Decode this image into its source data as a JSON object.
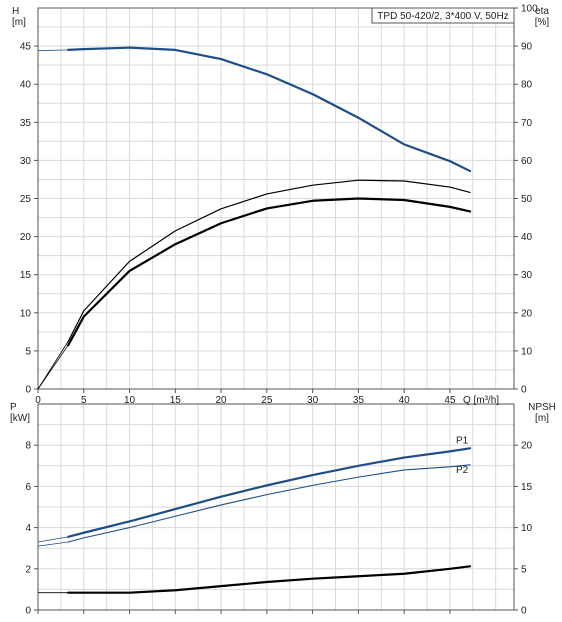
{
  "chart_data": [
    {
      "type": "line",
      "title": "TPD 50-420/2, 3*400 V, 50Hz",
      "xlabel": "Q [m³/h]",
      "ylabel_left": [
        "H",
        "[m]"
      ],
      "ylabel_right": [
        "eta",
        "[%]"
      ],
      "xlim": [
        0,
        52
      ],
      "ylim_left": [
        0,
        50
      ],
      "ylim_right": [
        0,
        100
      ],
      "xticks": [
        0,
        5,
        10,
        15,
        20,
        25,
        30,
        35,
        40,
        45
      ],
      "yticks_left": [
        0,
        5,
        10,
        15,
        20,
        25,
        30,
        35,
        40,
        45
      ],
      "yticks_right": [
        0,
        10,
        20,
        30,
        40,
        50,
        60,
        70,
        80,
        90,
        100
      ],
      "grid": true,
      "series": [
        {
          "axis": "left",
          "color": "#1f4e87",
          "x": [
            0,
            3.3,
            5,
            10,
            15,
            20,
            25,
            30,
            35,
            40,
            45,
            47.2
          ],
          "y": [
            44.4,
            44.5,
            44.6,
            44.8,
            44.5,
            43.3,
            41.3,
            38.7,
            35.6,
            32.1,
            29.9,
            28.6
          ]
        },
        {
          "axis": "right",
          "color": "#000000",
          "x": [
            0,
            3.3,
            5,
            10,
            15,
            20,
            25,
            30,
            35,
            40,
            45,
            47.2
          ],
          "y": [
            0,
            11.5,
            19,
            31,
            38,
            43.5,
            47.4,
            49.4,
            50,
            49.6,
            47.8,
            46.6
          ]
        },
        {
          "axis": "right",
          "color": "#000000",
          "x": [
            0,
            3.3,
            5,
            10,
            15,
            20,
            25,
            30,
            35,
            40,
            45,
            47.2
          ],
          "y": [
            0,
            12.5,
            20.5,
            33.5,
            41.5,
            47.3,
            51.2,
            53.5,
            54.8,
            54.6,
            53,
            51.6
          ]
        }
      ]
    },
    {
      "type": "line",
      "ylabel_left": [
        "P",
        "[kW]"
      ],
      "ylabel_right": [
        "NPSH",
        "[m]"
      ],
      "xlim": [
        0,
        52
      ],
      "ylim_left": [
        0,
        10
      ],
      "ylim_right": [
        0,
        25
      ],
      "yticks_left": [
        0,
        2,
        4,
        6,
        8
      ],
      "yticks_right": [
        0,
        5,
        10,
        15,
        20
      ],
      "grid": true,
      "series": [
        {
          "name": "P1",
          "axis": "left",
          "color": "#1f4e87",
          "x": [
            0,
            3.3,
            5,
            10,
            15,
            20,
            25,
            30,
            35,
            40,
            45,
            47.2
          ],
          "y": [
            3.3,
            3.55,
            3.75,
            4.3,
            4.9,
            5.5,
            6.05,
            6.55,
            7,
            7.4,
            7.7,
            7.85
          ]
        },
        {
          "name": "P2",
          "axis": "left",
          "color": "#1f4e87",
          "x": [
            0,
            3.3,
            5,
            10,
            15,
            20,
            25,
            30,
            35,
            40,
            45,
            47.2
          ],
          "y": [
            3.1,
            3.3,
            3.5,
            4,
            4.55,
            5.1,
            5.6,
            6.05,
            6.45,
            6.8,
            6.95,
            7.05
          ]
        },
        {
          "axis": "right",
          "color": "#000000",
          "x": [
            0,
            3.3,
            5,
            10,
            15,
            20,
            25,
            30,
            35,
            40,
            45,
            47.2
          ],
          "y": [
            2.1,
            2.1,
            2.1,
            2.1,
            2.4,
            2.9,
            3.4,
            3.8,
            4.1,
            4.4,
            5.0,
            5.3
          ]
        }
      ]
    }
  ]
}
